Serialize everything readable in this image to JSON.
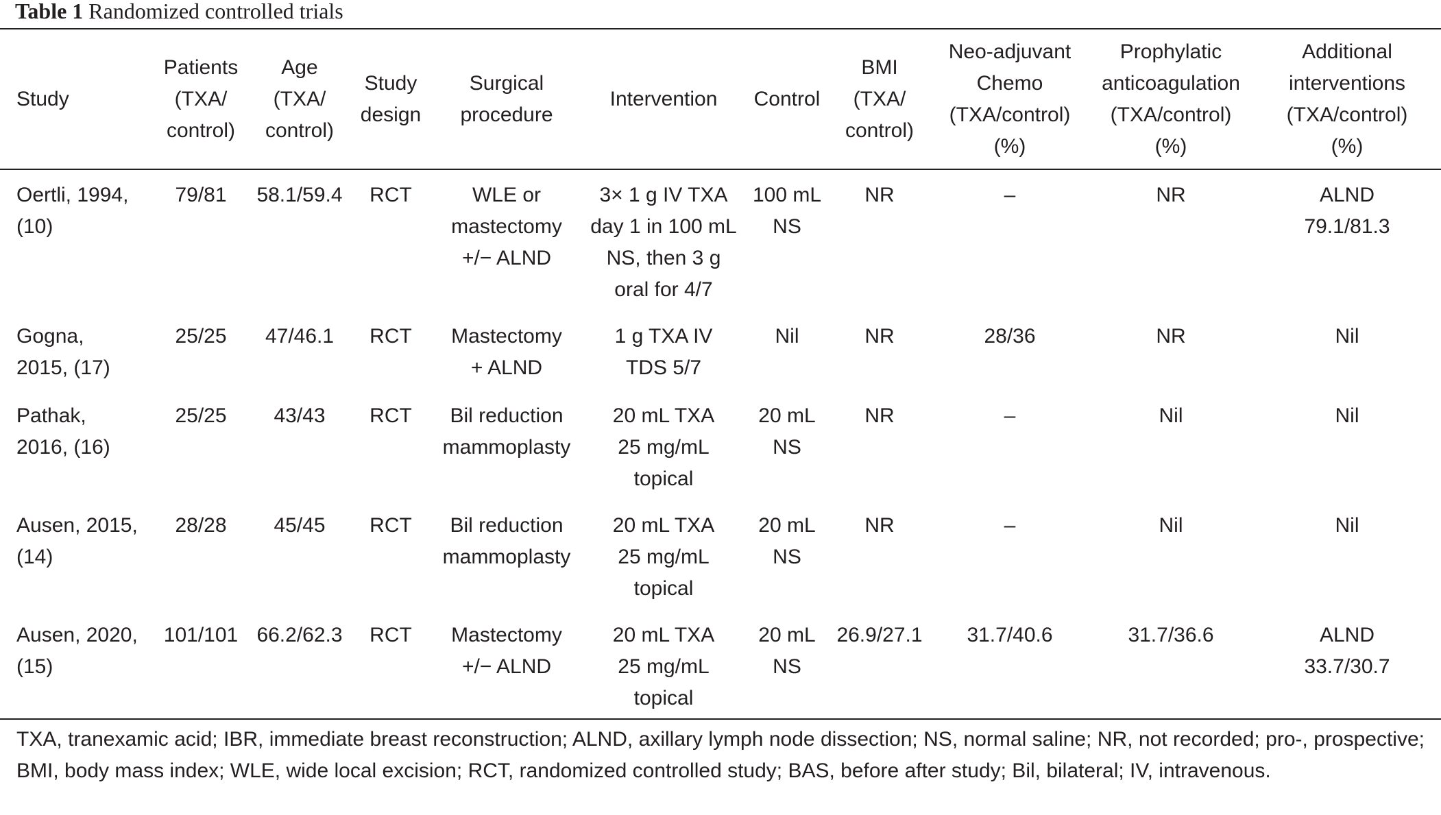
{
  "caption": {
    "label": "Table 1",
    "title": "Randomized controlled trials"
  },
  "columns": [
    "Study",
    "Patients\n(TXA/\ncontrol)",
    "Age\n(TXA/\ncontrol)",
    "Study\ndesign",
    "Surgical\nprocedure",
    "Intervention",
    "Control",
    "BMI\n(TXA/\ncontrol)",
    "Neo-adjuvant\nChemo\n(TXA/control)\n(%)",
    "Prophylatic\nanticoagulation\n(TXA/control)\n(%)",
    "Additional\ninterventions\n(TXA/control)\n(%)"
  ],
  "rows": [
    [
      "Oertli, 1994,\n(10)",
      "79/81",
      "58.1/59.4",
      "RCT",
      "WLE or\nmastectomy\n+/− ALND",
      "3× 1 g IV TXA\nday 1 in 100 mL\nNS, then 3 g\noral for 4/7",
      "100 mL\nNS",
      "NR",
      "–",
      "NR",
      "ALND\n79.1/81.3"
    ],
    [
      "Gogna,\n2015, (17)",
      "25/25",
      "47/46.1",
      "RCT",
      "Mastectomy\n+ ALND",
      "1 g TXA IV\nTDS 5/7",
      "Nil",
      "NR",
      "28/36",
      "NR",
      "Nil"
    ],
    [
      "Pathak,\n2016, (16)",
      "25/25",
      "43/43",
      "RCT",
      "Bil reduction\nmammoplasty",
      "20 mL TXA\n25 mg/mL\ntopical",
      "20 mL\nNS",
      "NR",
      "–",
      "Nil",
      "Nil"
    ],
    [
      "Ausen, 2015,\n(14)",
      "28/28",
      "45/45",
      "RCT",
      "Bil reduction\nmammoplasty",
      "20 mL TXA\n25 mg/mL\ntopical",
      "20 mL\nNS",
      "NR",
      "–",
      "Nil",
      "Nil"
    ],
    [
      "Ausen, 2020,\n(15)",
      "101/101",
      "66.2/62.3",
      "RCT",
      "Mastectomy\n+/− ALND",
      "20 mL TXA\n25 mg/mL\ntopical",
      "20 mL\nNS",
      "26.9/27.1",
      "31.7/40.6",
      "31.7/36.6",
      "ALND\n33.7/30.7"
    ]
  ],
  "footnote": "TXA, tranexamic acid; IBR, immediate breast reconstruction; ALND, axillary lymph node dissection; NS, normal saline; NR, not recorded; pro-, prospective; BMI, body mass index; WLE, wide local excision; RCT, randomized controlled study; BAS, before after study; Bil, bilateral; IV, intravenous."
}
